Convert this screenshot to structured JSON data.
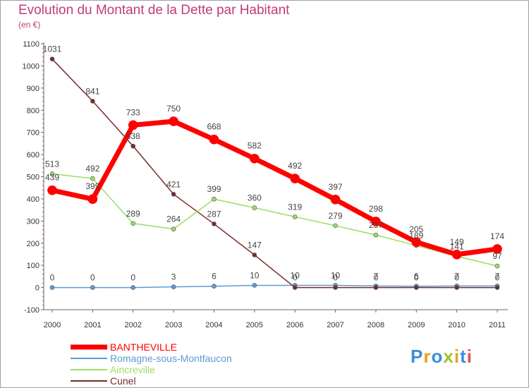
{
  "title": "Evolution du Montant de la Dette par Habitant",
  "subtitle": "(en €)",
  "logo": "Proxiti",
  "chart_data": {
    "type": "line",
    "title": "Evolution du Montant de la Dette par Habitant",
    "ylabel": "(en €)",
    "xlabel": "",
    "x": [
      "2000",
      "2001",
      "2002",
      "2003",
      "2004",
      "2005",
      "2006",
      "2007",
      "2008",
      "2009",
      "2010",
      "2011"
    ],
    "ylim": [
      -100,
      1100
    ],
    "yticks": [
      -100,
      0,
      100,
      200,
      300,
      400,
      500,
      600,
      700,
      800,
      900,
      1000,
      1100
    ],
    "grid": false,
    "legend": "bottom-left",
    "series": [
      {
        "name": "BANTHEVILLE",
        "color": "#ff0000",
        "values": [
          439,
          399,
          733,
          750,
          668,
          582,
          492,
          397,
          298,
          205,
          149,
          174
        ]
      },
      {
        "name": "Romagne-sous-Montfaucon",
        "color": "#5b9bd5",
        "values": [
          0,
          0,
          0,
          3,
          6,
          10,
          10,
          10,
          7,
          6,
          7,
          7
        ]
      },
      {
        "name": "Aincreville",
        "color": "#99dd66",
        "values": [
          513,
          492,
          289,
          264,
          399,
          360,
          319,
          279,
          237,
          189,
          141,
          97
        ]
      },
      {
        "name": "Cunel",
        "color": "#7a2b2b",
        "values": [
          1031,
          841,
          638,
          421,
          287,
          147,
          0,
          0,
          0,
          0,
          0,
          0
        ]
      }
    ]
  }
}
